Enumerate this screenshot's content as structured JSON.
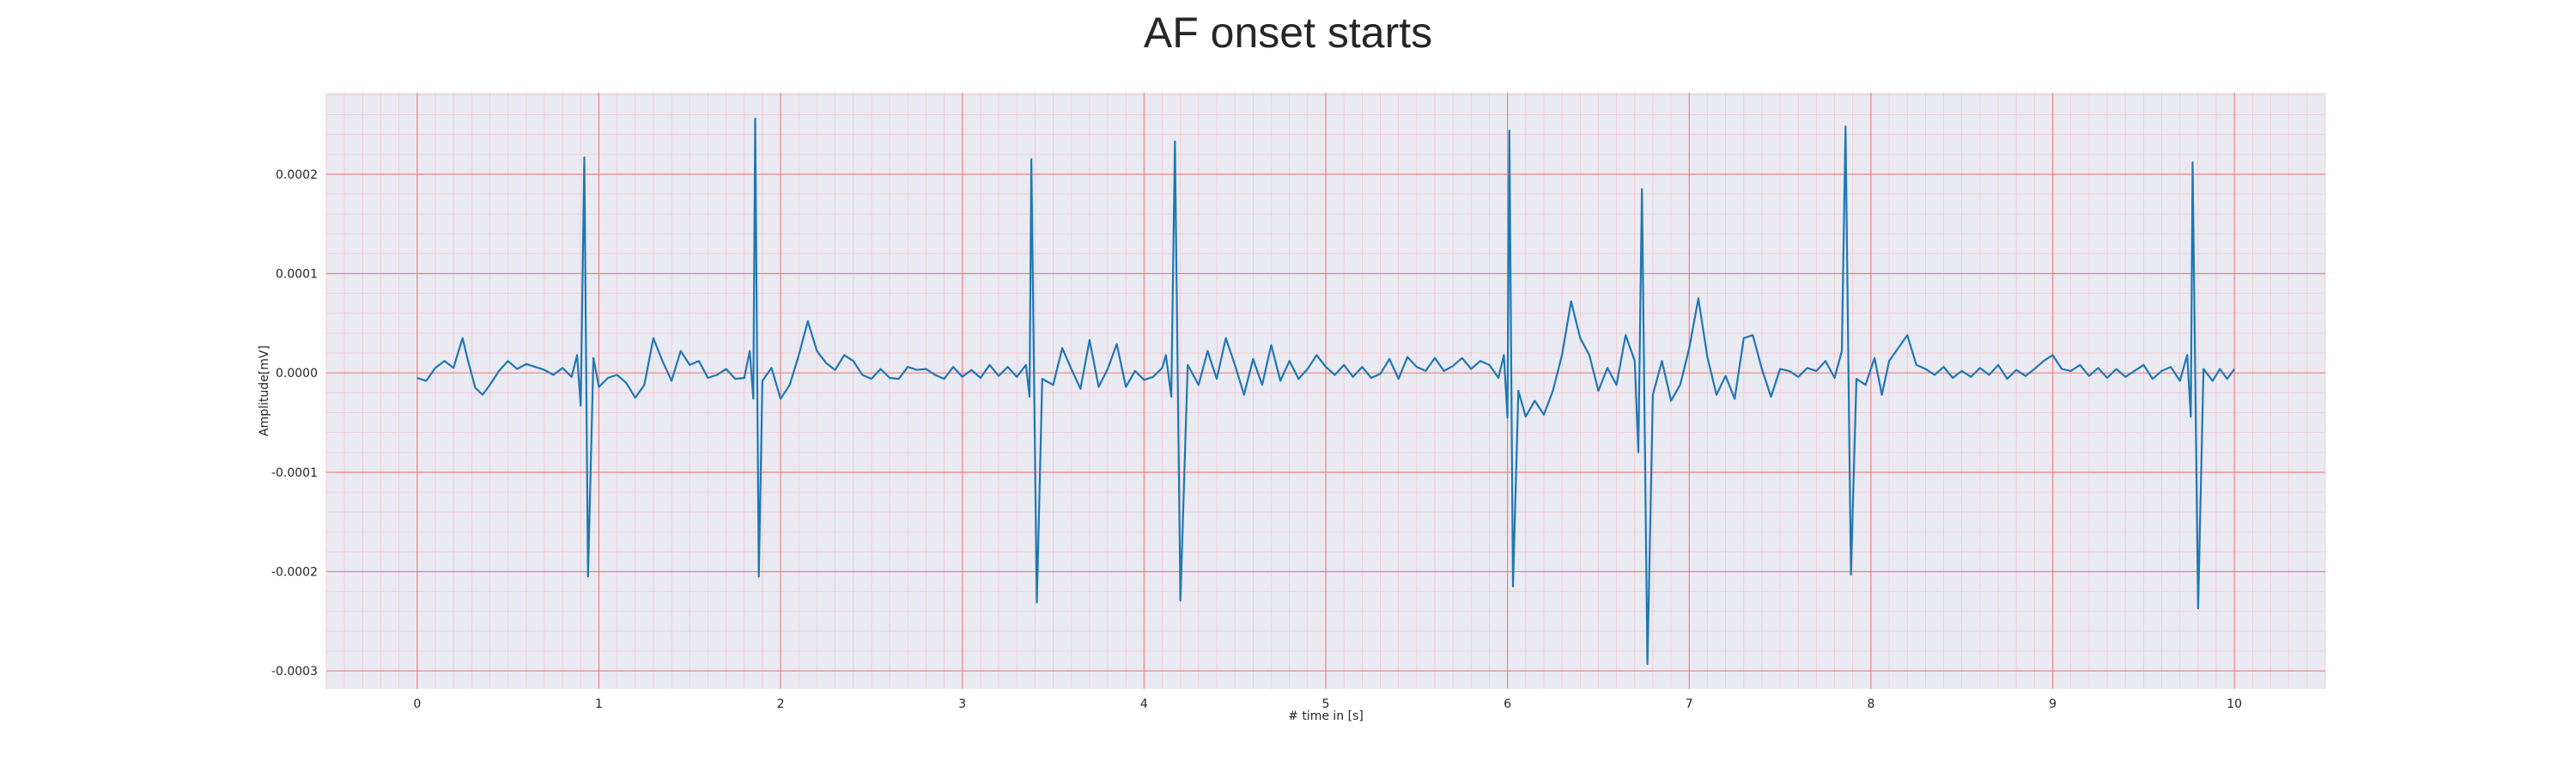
{
  "chart_data": {
    "type": "line",
    "title": "AF onset starts",
    "xlabel": "# time in [s]",
    "ylabel": "Amplitude[mV]",
    "xlim": [
      -0.5,
      10.5
    ],
    "ylim": [
      -0.000318,
      0.000282
    ],
    "x_ticks": [
      "0",
      "1",
      "2",
      "3",
      "4",
      "5",
      "6",
      "7",
      "8",
      "9",
      "10"
    ],
    "y_ticks": [
      "0.0002",
      "0.0001",
      "0.0000",
      "-0.0001",
      "-0.0002",
      "-0.0003"
    ],
    "y_tick_values": [
      0.0002,
      0.0001,
      0.0,
      -0.0001,
      -0.0002,
      -0.0003
    ],
    "grid": true,
    "colors": {
      "plot_bg": "#eaeaf2",
      "major_grid": "#f08080",
      "minor_grid": "#f4c6cc",
      "line": "#1f77b4"
    },
    "series": [
      {
        "values": [
          [
            0.0,
            -5e-06
          ],
          [
            0.05,
            -8e-06
          ],
          [
            0.1,
            5e-06
          ],
          [
            0.15,
            1.2e-05
          ],
          [
            0.2,
            5e-06
          ],
          [
            0.25,
            3.5e-05
          ],
          [
            0.28,
            1.2e-05
          ],
          [
            0.32,
            -1.5e-05
          ],
          [
            0.36,
            -2.2e-05
          ],
          [
            0.4,
            -1.2e-05
          ],
          [
            0.45,
            2e-06
          ],
          [
            0.5,
            1.2e-05
          ],
          [
            0.55,
            4e-06
          ],
          [
            0.6,
            9e-06
          ],
          [
            0.65,
            6e-06
          ],
          [
            0.7,
            3e-06
          ],
          [
            0.75,
            -2e-06
          ],
          [
            0.8,
            5e-06
          ],
          [
            0.85,
            -4e-06
          ],
          [
            0.88,
            1.8e-05
          ],
          [
            0.9,
            -3.3e-05
          ],
          [
            0.92,
            0.000217
          ],
          [
            0.94,
            -0.000205
          ],
          [
            0.97,
            1.5e-05
          ],
          [
            1.0,
            -1.4e-05
          ],
          [
            1.05,
            -5e-06
          ],
          [
            1.1,
            -2e-06
          ],
          [
            1.15,
            -1e-05
          ],
          [
            1.2,
            -2.5e-05
          ],
          [
            1.25,
            -1.2e-05
          ],
          [
            1.3,
            3.5e-05
          ],
          [
            1.35,
            1.2e-05
          ],
          [
            1.4,
            -8e-06
          ],
          [
            1.45,
            2.2e-05
          ],
          [
            1.5,
            8e-06
          ],
          [
            1.55,
            1.2e-05
          ],
          [
            1.6,
            -5e-06
          ],
          [
            1.65,
            -2e-06
          ],
          [
            1.7,
            4e-06
          ],
          [
            1.75,
            -6e-06
          ],
          [
            1.8,
            -5e-06
          ],
          [
            1.83,
            2.2e-05
          ],
          [
            1.85,
            -2.6e-05
          ],
          [
            1.86,
            0.000256
          ],
          [
            1.88,
            -0.000205
          ],
          [
            1.9,
            -8e-06
          ],
          [
            1.95,
            5e-06
          ],
          [
            2.0,
            -2.6e-05
          ],
          [
            2.05,
            -1.2e-05
          ],
          [
            2.1,
            1.8e-05
          ],
          [
            2.15,
            5.2e-05
          ],
          [
            2.2,
            2.2e-05
          ],
          [
            2.25,
            1e-05
          ],
          [
            2.3,
            3e-06
          ],
          [
            2.35,
            1.8e-05
          ],
          [
            2.4,
            1.2e-05
          ],
          [
            2.45,
            -2e-06
          ],
          [
            2.5,
            -6e-06
          ],
          [
            2.55,
            4e-06
          ],
          [
            2.6,
            -5e-06
          ],
          [
            2.65,
            -6e-06
          ],
          [
            2.7,
            6e-06
          ],
          [
            2.75,
            3e-06
          ],
          [
            2.8,
            4e-06
          ],
          [
            2.85,
            -2e-06
          ],
          [
            2.9,
            -6e-06
          ],
          [
            2.95,
            6e-06
          ],
          [
            3.0,
            -4e-06
          ],
          [
            3.05,
            3e-06
          ],
          [
            3.1,
            -5e-06
          ],
          [
            3.15,
            8e-06
          ],
          [
            3.2,
            -3e-06
          ],
          [
            3.25,
            6e-06
          ],
          [
            3.3,
            -4e-06
          ],
          [
            3.35,
            8e-06
          ],
          [
            3.37,
            -2.4e-05
          ],
          [
            3.38,
            0.000215
          ],
          [
            3.41,
            -0.000231
          ],
          [
            3.44,
            -6e-06
          ],
          [
            3.5,
            -1.2e-05
          ],
          [
            3.55,
            2.5e-05
          ],
          [
            3.6,
            4e-06
          ],
          [
            3.65,
            -1.6e-05
          ],
          [
            3.7,
            3.3e-05
          ],
          [
            3.75,
            -1.4e-05
          ],
          [
            3.8,
            4e-06
          ],
          [
            3.85,
            2.9e-05
          ],
          [
            3.9,
            -1.4e-05
          ],
          [
            3.95,
            2e-06
          ],
          [
            4.0,
            -7e-06
          ],
          [
            4.05,
            -4e-06
          ],
          [
            4.1,
            5e-06
          ],
          [
            4.12,
            1.8e-05
          ],
          [
            4.15,
            -2.4e-05
          ],
          [
            4.17,
            0.000233
          ],
          [
            4.2,
            -0.000229
          ],
          [
            4.24,
            8e-06
          ],
          [
            4.3,
            -1.2e-05
          ],
          [
            4.35,
            2.2e-05
          ],
          [
            4.4,
            -6e-06
          ],
          [
            4.45,
            3.5e-05
          ],
          [
            4.5,
            8e-06
          ],
          [
            4.55,
            -2.2e-05
          ],
          [
            4.6,
            1.4e-05
          ],
          [
            4.65,
            -1.2e-05
          ],
          [
            4.7,
            2.8e-05
          ],
          [
            4.75,
            -8e-06
          ],
          [
            4.8,
            1.2e-05
          ],
          [
            4.85,
            -6e-06
          ],
          [
            4.9,
            4e-06
          ],
          [
            4.95,
            1.8e-05
          ],
          [
            5.0,
            6e-06
          ],
          [
            5.05,
            -2e-06
          ],
          [
            5.1,
            8e-06
          ],
          [
            5.15,
            -4e-06
          ],
          [
            5.2,
            6e-06
          ],
          [
            5.25,
            -5e-06
          ],
          [
            5.3,
            -1e-06
          ],
          [
            5.35,
            1.4e-05
          ],
          [
            5.4,
            -6e-06
          ],
          [
            5.45,
            1.6e-05
          ],
          [
            5.5,
            6e-06
          ],
          [
            5.55,
            2e-06
          ],
          [
            5.6,
            1.5e-05
          ],
          [
            5.65,
            2e-06
          ],
          [
            5.7,
            7e-06
          ],
          [
            5.75,
            1.5e-05
          ],
          [
            5.8,
            4e-06
          ],
          [
            5.85,
            1.2e-05
          ],
          [
            5.9,
            8e-06
          ],
          [
            5.95,
            -5e-06
          ],
          [
            5.98,
            1.8e-05
          ],
          [
            6.0,
            -4.5e-05
          ],
          [
            6.01,
            0.000244
          ],
          [
            6.03,
            -0.000215
          ],
          [
            6.06,
            -1.8e-05
          ],
          [
            6.1,
            -4.4e-05
          ],
          [
            6.15,
            -2.8e-05
          ],
          [
            6.2,
            -4.2e-05
          ],
          [
            6.25,
            -1.8e-05
          ],
          [
            6.3,
            1.8e-05
          ],
          [
            6.35,
            7.2e-05
          ],
          [
            6.4,
            3.5e-05
          ],
          [
            6.45,
            1.8e-05
          ],
          [
            6.5,
            -1.8e-05
          ],
          [
            6.55,
            5e-06
          ],
          [
            6.6,
            -1.2e-05
          ],
          [
            6.65,
            3.8e-05
          ],
          [
            6.7,
            1.2e-05
          ],
          [
            6.72,
            -8e-05
          ],
          [
            6.74,
            0.000185
          ],
          [
            6.77,
            -0.000293
          ],
          [
            6.8,
            -2.2e-05
          ],
          [
            6.85,
            1.2e-05
          ],
          [
            6.9,
            -2.8e-05
          ],
          [
            6.95,
            -1.2e-05
          ],
          [
            7.0,
            2.5e-05
          ],
          [
            7.05,
            7.5e-05
          ],
          [
            7.1,
            1.6e-05
          ],
          [
            7.15,
            -2.2e-05
          ],
          [
            7.2,
            -3e-06
          ],
          [
            7.25,
            -2.6e-05
          ],
          [
            7.3,
            3.5e-05
          ],
          [
            7.35,
            3.8e-05
          ],
          [
            7.4,
            4e-06
          ],
          [
            7.45,
            -2.4e-05
          ],
          [
            7.5,
            4e-06
          ],
          [
            7.55,
            2e-06
          ],
          [
            7.6,
            -4e-06
          ],
          [
            7.65,
            5e-06
          ],
          [
            7.7,
            2e-06
          ],
          [
            7.75,
            1.2e-05
          ],
          [
            7.8,
            -5e-06
          ],
          [
            7.84,
            2.2e-05
          ],
          [
            7.86,
            0.000248
          ],
          [
            7.89,
            -0.000203
          ],
          [
            7.92,
            -6e-06
          ],
          [
            7.97,
            -1.2e-05
          ],
          [
            8.02,
            1.5e-05
          ],
          [
            8.06,
            -2.2e-05
          ],
          [
            8.1,
            1.2e-05
          ],
          [
            8.15,
            2.5e-05
          ],
          [
            8.2,
            3.8e-05
          ],
          [
            8.25,
            8e-06
          ],
          [
            8.3,
            4e-06
          ],
          [
            8.35,
            -2e-06
          ],
          [
            8.4,
            6e-06
          ],
          [
            8.45,
            -5e-06
          ],
          [
            8.5,
            2e-06
          ],
          [
            8.55,
            -4e-06
          ],
          [
            8.6,
            5e-06
          ],
          [
            8.65,
            -2e-06
          ],
          [
            8.7,
            8e-06
          ],
          [
            8.75,
            -6e-06
          ],
          [
            8.8,
            3e-06
          ],
          [
            8.85,
            -3e-06
          ],
          [
            8.9,
            4e-06
          ],
          [
            8.95,
            1.2e-05
          ],
          [
            9.0,
            1.8e-05
          ],
          [
            9.05,
            4e-06
          ],
          [
            9.1,
            2e-06
          ],
          [
            9.15,
            8e-06
          ],
          [
            9.2,
            -3e-06
          ],
          [
            9.25,
            5e-06
          ],
          [
            9.3,
            -5e-06
          ],
          [
            9.35,
            4e-06
          ],
          [
            9.4,
            -4e-06
          ],
          [
            9.45,
            2e-06
          ],
          [
            9.5,
            8e-06
          ],
          [
            9.55,
            -6e-06
          ],
          [
            9.6,
            2e-06
          ],
          [
            9.65,
            6e-06
          ],
          [
            9.7,
            -8e-06
          ],
          [
            9.74,
            1.8e-05
          ],
          [
            9.76,
            -4.4e-05
          ],
          [
            9.77,
            0.000212
          ],
          [
            9.8,
            -0.000237
          ],
          [
            9.83,
            4e-06
          ],
          [
            9.88,
            -8e-06
          ],
          [
            9.92,
            4e-06
          ],
          [
            9.96,
            -6e-06
          ],
          [
            10.0,
            4e-06
          ]
        ]
      }
    ]
  }
}
